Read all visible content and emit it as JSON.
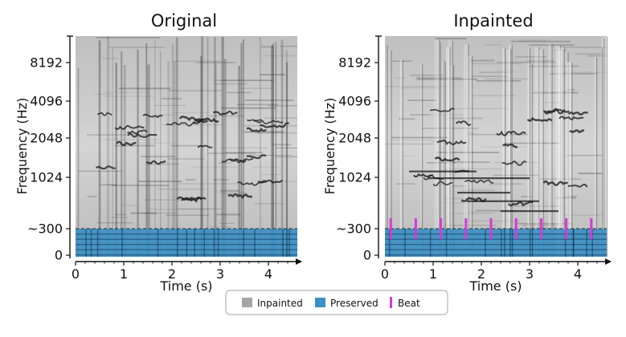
{
  "chart_data": [
    {
      "type": "heatmap",
      "title": "Original",
      "xlabel": "Time (s)",
      "ylabel": "Frequency (Hz)",
      "xlim": [
        0,
        4.6
      ],
      "x_ticks": [
        0,
        1,
        2,
        3,
        4
      ],
      "y_ticks": [
        0,
        300,
        1024,
        2048,
        4096,
        8192
      ],
      "y_tick_labels": [
        "0",
        "~300",
        "1024",
        "2048",
        "4096",
        "8192"
      ],
      "preserved_band_hz": [
        0,
        300
      ],
      "cutoff_line_hz": 300
    },
    {
      "type": "heatmap",
      "title": "Inpainted",
      "xlabel": "Time (s)",
      "ylabel": "Frequency (Hz)",
      "xlim": [
        0,
        4.6
      ],
      "x_ticks": [
        0,
        1,
        2,
        3,
        4
      ],
      "y_ticks": [
        0,
        300,
        1024,
        2048,
        4096,
        8192
      ],
      "y_tick_labels": [
        "0",
        "~300",
        "1024",
        "2048",
        "4096",
        "8192"
      ],
      "preserved_band_hz": [
        0,
        300
      ],
      "cutoff_line_hz": 300,
      "beats_s": [
        0.12,
        0.64,
        1.16,
        1.68,
        2.2,
        2.72,
        3.24,
        3.76,
        4.28
      ]
    }
  ],
  "legend": {
    "items": [
      {
        "label": "Inpainted",
        "color": "#a6a6a6"
      },
      {
        "label": "Preserved",
        "color": "#3a8fc4"
      },
      {
        "label": "Beat",
        "color": "#d63ad6"
      }
    ]
  },
  "colors": {
    "preserved": "#3a8fc4",
    "beat": "#d63ad6",
    "spectro_bg": "#d7d7d7",
    "spectro_dark": "#333333"
  }
}
